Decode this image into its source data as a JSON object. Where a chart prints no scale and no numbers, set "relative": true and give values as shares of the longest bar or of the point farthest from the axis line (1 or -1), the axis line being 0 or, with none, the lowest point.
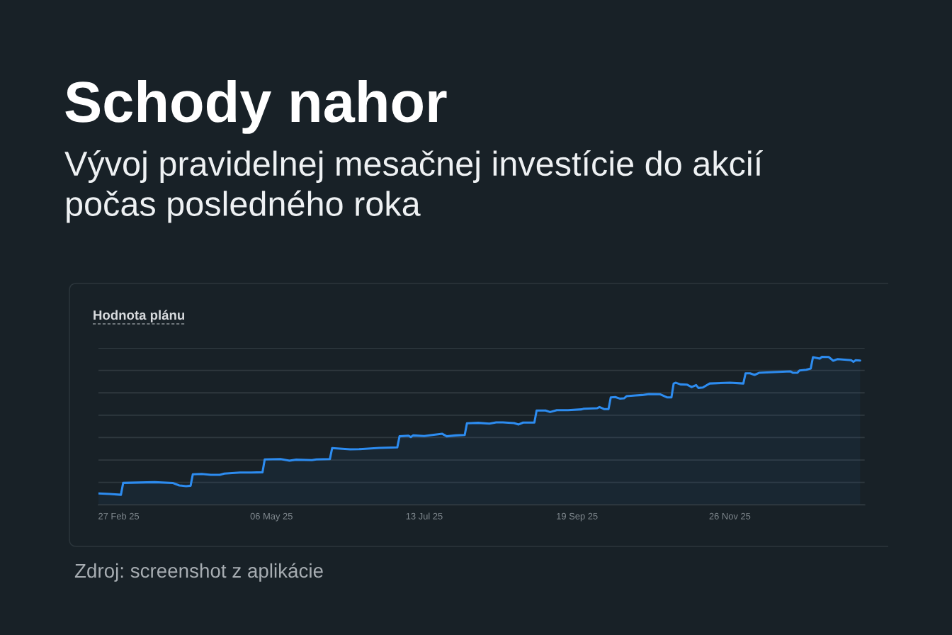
{
  "chart_data": {
    "type": "area",
    "title": "Schody nahor",
    "subtitle": "Vývoj pravidelnej mesačnej investície do akcií\npočas posledného roka",
    "annotations": [
      "Hodnota plánu",
      "Zdroj: screenshot z aplikácie"
    ],
    "relative": true,
    "x": [
      "2025-02-18",
      "2025-02-23",
      "2025-02-28",
      "2025-03-01",
      "2025-03-15",
      "2025-03-23",
      "2025-03-26",
      "2025-03-29",
      "2025-03-31",
      "2025-04-01",
      "2025-04-05",
      "2025-04-09",
      "2025-04-13",
      "2025-04-15",
      "2025-04-22",
      "2025-04-27",
      "2025-05-02",
      "2025-05-03",
      "2025-05-10",
      "2025-05-14",
      "2025-05-17",
      "2025-05-24",
      "2025-05-26",
      "2025-06-01",
      "2025-06-02",
      "2025-06-10",
      "2025-06-14",
      "2025-06-23",
      "2025-07-01",
      "2025-07-02",
      "2025-07-06",
      "2025-07-07",
      "2025-07-08",
      "2025-07-13",
      "2025-07-16",
      "2025-07-21",
      "2025-07-23",
      "2025-07-27",
      "2025-07-31",
      "2025-08-01",
      "2025-08-06",
      "2025-08-11",
      "2025-08-14",
      "2025-08-17",
      "2025-08-22",
      "2025-08-24",
      "2025-08-26",
      "2025-08-31",
      "2025-09-01",
      "2025-09-05",
      "2025-09-07",
      "2025-09-10",
      "2025-09-15",
      "2025-09-21",
      "2025-09-22",
      "2025-09-28",
      "2025-09-29",
      "2025-10-01",
      "2025-10-03",
      "2025-10-04",
      "2025-10-06",
      "2025-10-08",
      "2025-10-10",
      "2025-10-11",
      "2025-10-15",
      "2025-10-18",
      "2025-10-21",
      "2025-10-26",
      "2025-10-29",
      "2025-10-31",
      "2025-11-01",
      "2025-11-02",
      "2025-11-04",
      "2025-11-07",
      "2025-11-09",
      "2025-11-11",
      "2025-11-12",
      "2025-11-14",
      "2025-11-17",
      "2025-11-26",
      "2025-12-02",
      "2025-12-03",
      "2025-12-05",
      "2025-12-07",
      "2025-12-09",
      "2025-12-16",
      "2025-12-23",
      "2025-12-24",
      "2025-12-26",
      "2025-12-27",
      "2025-12-30",
      "2026-01-01",
      "2026-01-02",
      "2026-01-05",
      "2026-01-06",
      "2026-01-09",
      "2026-01-11",
      "2026-01-13",
      "2026-01-15",
      "2026-01-19",
      "2026-01-20",
      "2026-01-21",
      "2026-01-23"
    ],
    "series": [
      {
        "color": "#2d8cf0",
        "values": [
          0.077,
          0.073,
          0.068,
          0.148,
          0.153,
          0.148,
          0.131,
          0.126,
          0.129,
          0.206,
          0.209,
          0.203,
          0.203,
          0.211,
          0.218,
          0.218,
          0.22,
          0.307,
          0.309,
          0.298,
          0.305,
          0.302,
          0.307,
          0.309,
          0.383,
          0.375,
          0.376,
          0.385,
          0.388,
          0.463,
          0.467,
          0.458,
          0.469,
          0.465,
          0.471,
          0.48,
          0.463,
          0.469,
          0.472,
          0.551,
          0.554,
          0.549,
          0.557,
          0.557,
          0.552,
          0.543,
          0.556,
          0.556,
          0.637,
          0.637,
          0.627,
          0.64,
          0.64,
          0.645,
          0.649,
          0.653,
          0.661,
          0.647,
          0.647,
          0.726,
          0.728,
          0.718,
          0.72,
          0.734,
          0.739,
          0.742,
          0.749,
          0.747,
          0.726,
          0.726,
          0.82,
          0.825,
          0.814,
          0.812,
          0.796,
          0.809,
          0.79,
          0.793,
          0.82,
          0.825,
          0.82,
          0.889,
          0.889,
          0.878,
          0.892,
          0.897,
          0.902,
          0.892,
          0.892,
          0.908,
          0.913,
          0.921,
          0.998,
          0.988,
          1,
          0.999,
          0.974,
          0.985,
          0.982,
          0.977,
          0.966,
          0.977,
          0.975
        ]
      }
    ],
    "xlim": [
      "2025-02-18",
      "2026-01-25"
    ],
    "xticks": [
      {
        "value": "2025-02-27",
        "label": "27 Feb 25"
      },
      {
        "value": "2025-05-06",
        "label": "06 May 25"
      },
      {
        "value": "2025-07-13",
        "label": "13 Jul 25"
      },
      {
        "value": "2025-09-19",
        "label": "19 Sep 25"
      },
      {
        "value": "2025-11-26",
        "label": "26 Nov 25"
      }
    ],
    "grid": "y",
    "tick_labels": "x"
  }
}
